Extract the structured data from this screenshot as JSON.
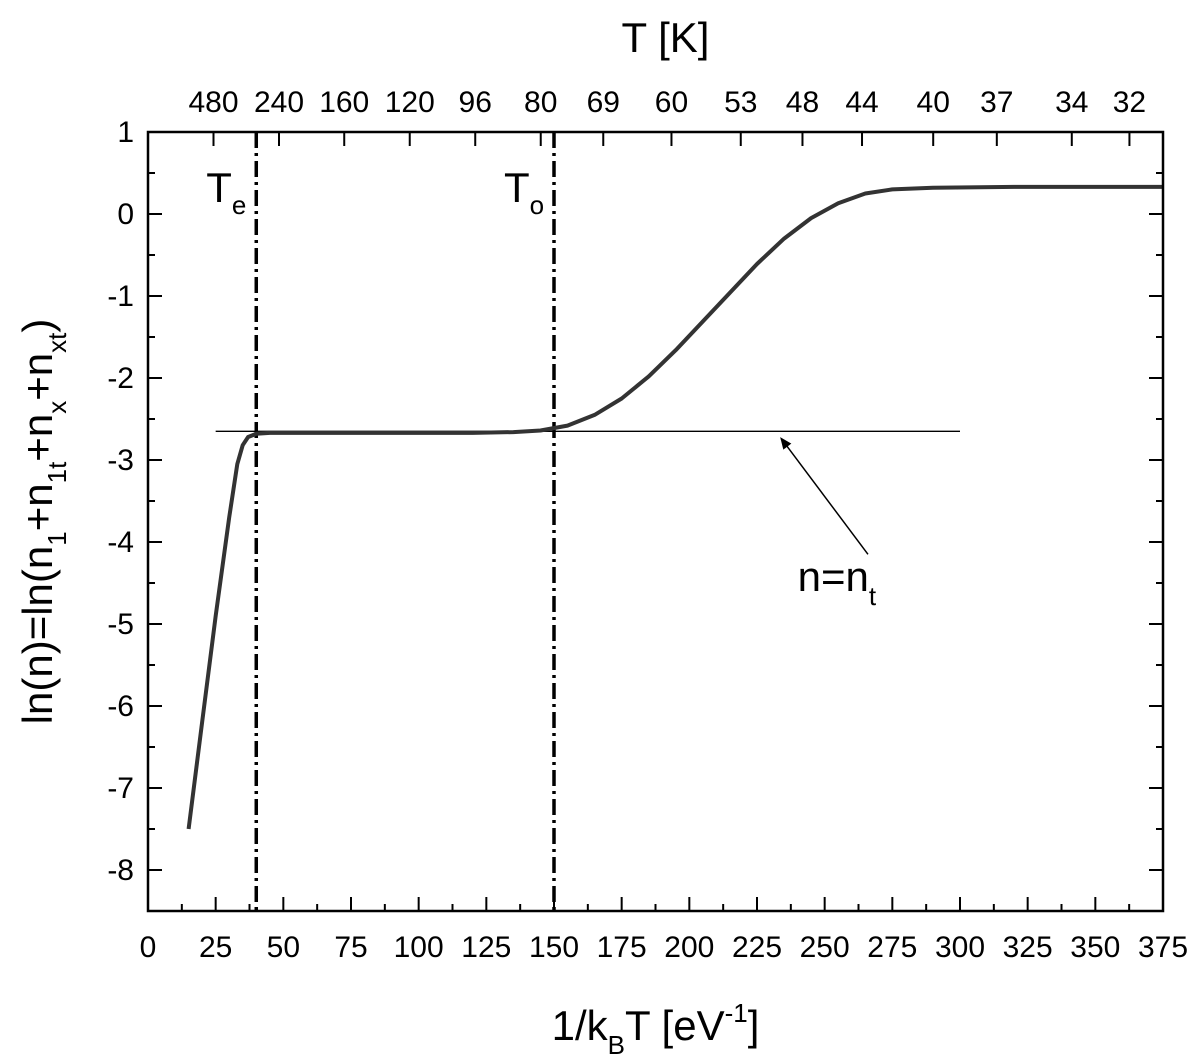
{
  "chart_data": {
    "type": "line",
    "x_axis": {
      "label_main": "1/k",
      "label_sub": "B",
      "label_rest": "T [eV",
      "label_sup": "-1",
      "label_end": "]",
      "range": [
        0,
        375
      ],
      "ticks": [
        0,
        25,
        50,
        75,
        100,
        125,
        150,
        175,
        200,
        225,
        250,
        275,
        300,
        325,
        350,
        375
      ]
    },
    "y_axis": {
      "label_parts": [
        "ln(n)=ln(n",
        "1",
        "+n",
        "1t",
        "+n",
        "x",
        "+n",
        "xt",
        ")"
      ],
      "range": [
        -8.5,
        1
      ],
      "ticks": [
        1,
        0,
        -1,
        -2,
        -3,
        -4,
        -5,
        -6,
        -7,
        -8
      ]
    },
    "top_axis": {
      "label": "T [K]",
      "ticks": [
        {
          "x": 24.2,
          "label": "480"
        },
        {
          "x": 48.4,
          "label": "240"
        },
        {
          "x": 72.5,
          "label": "160"
        },
        {
          "x": 96.7,
          "label": "120"
        },
        {
          "x": 120.9,
          "label": "96"
        },
        {
          "x": 145.1,
          "label": "80"
        },
        {
          "x": 168.2,
          "label": "69"
        },
        {
          "x": 193.4,
          "label": "60"
        },
        {
          "x": 219.0,
          "label": "53"
        },
        {
          "x": 241.8,
          "label": "48"
        },
        {
          "x": 263.8,
          "label": "44"
        },
        {
          "x": 290.1,
          "label": "40"
        },
        {
          "x": 313.6,
          "label": "37"
        },
        {
          "x": 341.3,
          "label": "34"
        },
        {
          "x": 362.6,
          "label": "32"
        }
      ]
    },
    "series": [
      {
        "points": [
          [
            15,
            -7.5
          ],
          [
            20,
            -6.2
          ],
          [
            25,
            -4.9
          ],
          [
            30,
            -3.7
          ],
          [
            33,
            -3.05
          ],
          [
            35,
            -2.82
          ],
          [
            37,
            -2.72
          ],
          [
            40,
            -2.68
          ],
          [
            45,
            -2.67
          ],
          [
            60,
            -2.67
          ],
          [
            80,
            -2.67
          ],
          [
            100,
            -2.67
          ],
          [
            120,
            -2.67
          ],
          [
            135,
            -2.66
          ],
          [
            145,
            -2.64
          ],
          [
            155,
            -2.58
          ],
          [
            165,
            -2.45
          ],
          [
            175,
            -2.25
          ],
          [
            185,
            -1.98
          ],
          [
            195,
            -1.66
          ],
          [
            205,
            -1.31
          ],
          [
            215,
            -0.96
          ],
          [
            225,
            -0.61
          ],
          [
            235,
            -0.3
          ],
          [
            245,
            -0.05
          ],
          [
            255,
            0.13
          ],
          [
            265,
            0.25
          ],
          [
            275,
            0.3
          ],
          [
            290,
            0.32
          ],
          [
            320,
            0.33
          ],
          [
            350,
            0.33
          ],
          [
            375,
            0.33
          ]
        ]
      }
    ],
    "reference_line": {
      "y": -2.65,
      "x_range": [
        25,
        300
      ]
    },
    "vlines": [
      {
        "x": 40,
        "label_main": "T",
        "label_sub": "e"
      },
      {
        "x": 150,
        "label_main": "T",
        "label_sub": "o"
      }
    ],
    "annotation": {
      "label_main": "n=n",
      "label_sub": "t",
      "text_at": [
        240,
        -4.6
      ],
      "arrow_from": [
        266,
        -4.15
      ],
      "arrow_to": [
        234,
        -2.74
      ]
    }
  }
}
